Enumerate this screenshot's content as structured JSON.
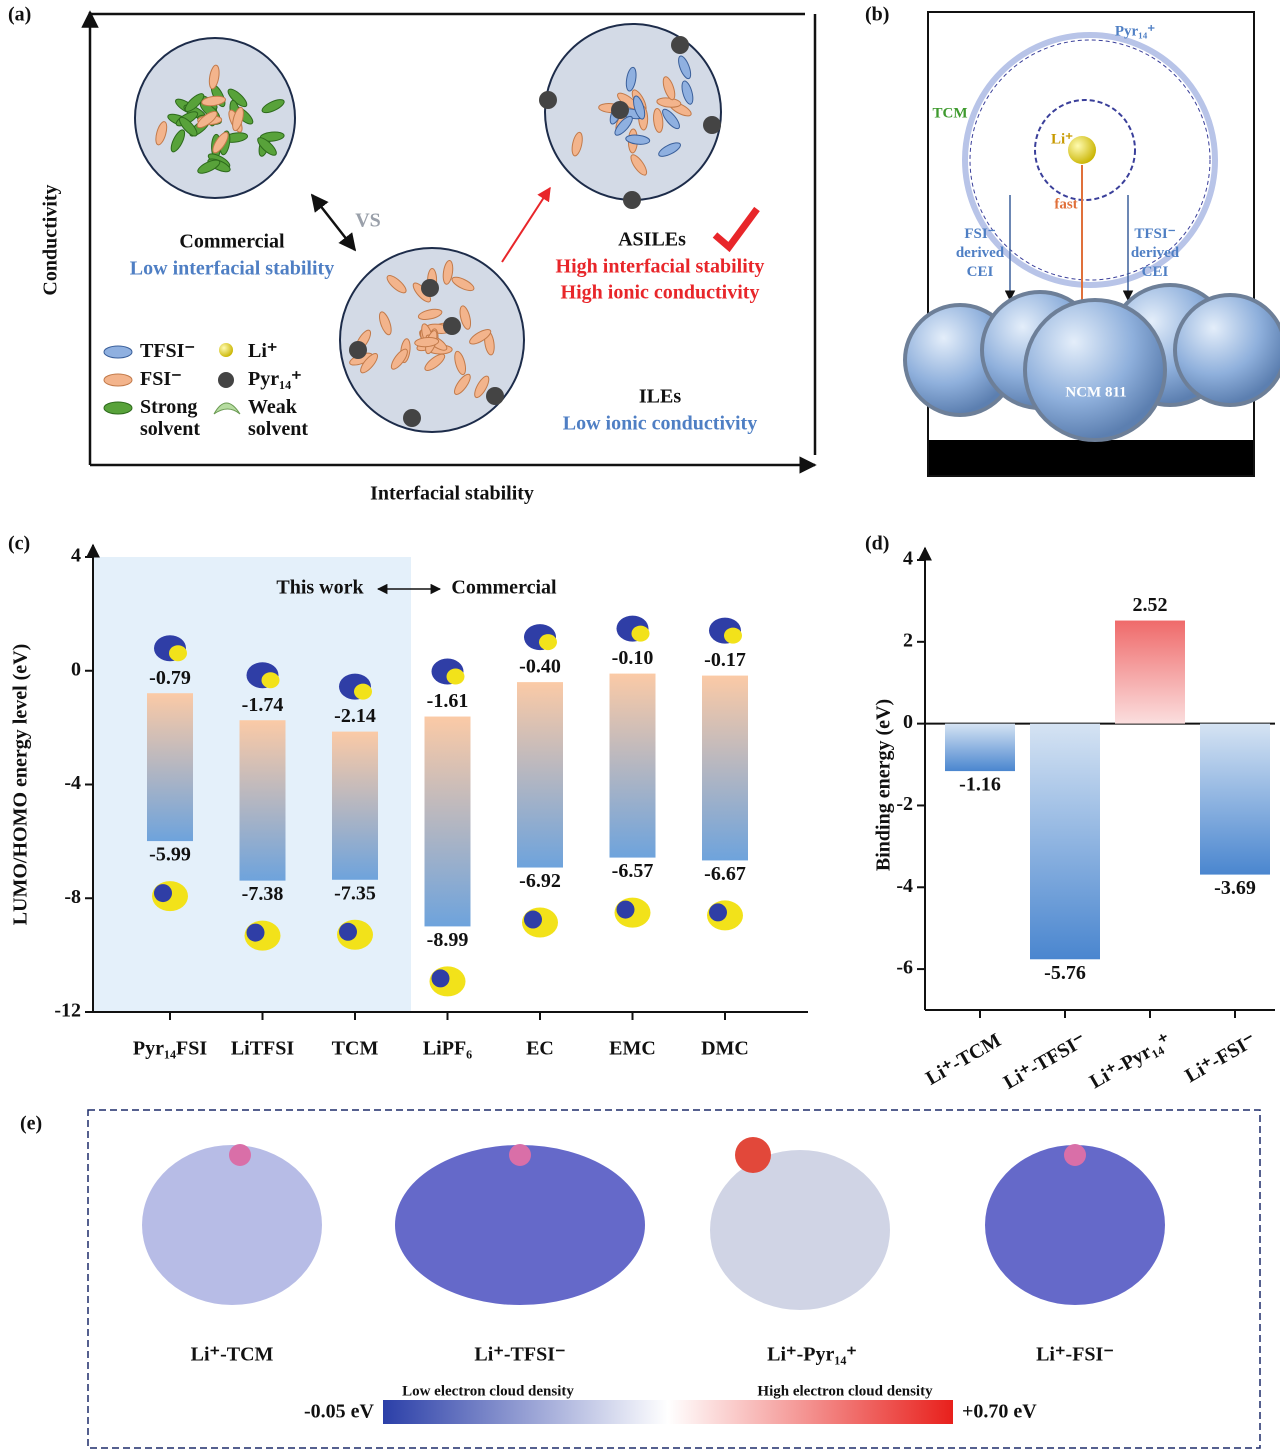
{
  "labels": [
    "(a)",
    "(b)",
    "(c)",
    "(d)",
    "(e)"
  ],
  "panel_a": {
    "y_label": "Conductivity",
    "x_label": "Interfacial stability",
    "vs": "VS",
    "commercial": {
      "name": "Commercial",
      "note": "Low interfacial stability"
    },
    "asiles": {
      "name": "ASILEs",
      "notes": [
        "High interfacial stability",
        "High ionic conductivity"
      ]
    },
    "iles": {
      "name": "ILEs",
      "note": "Low ionic conductivity"
    },
    "legend": [
      [
        "TFSI⁻"
      ],
      [
        "FSI⁻"
      ],
      [
        "Strong",
        "solvent"
      ],
      [
        "Li⁺"
      ],
      [
        "Pyr₁₄⁺"
      ],
      [
        "Weak",
        "solvent"
      ]
    ]
  },
  "panel_b": {
    "cation": "Pyr₁₄⁺",
    "solvent": "TCM",
    "li": "Li⁺",
    "fast": "fast",
    "fsi_cei": [
      "FSI⁻",
      "derived",
      "CEI"
    ],
    "tfsi_cei": [
      "TFSI⁻",
      "derived",
      "CEI"
    ],
    "cathode": "NCM 811"
  },
  "chart_data": [
    {
      "type": "range",
      "y_label": "LUMO/HOMO energy level (eV)",
      "annotations": [
        "This work",
        "Commercial"
      ],
      "categories": [
        "Pyr₁₄FSI",
        "LiTFSI",
        "TCM",
        "LiPF₆",
        "EC",
        "EMC",
        "DMC"
      ],
      "series": [
        {
          "values": [
            -0.79,
            -1.74,
            -2.14,
            -1.61,
            -0.4,
            -0.1,
            -0.17
          ],
          "value_labels": [
            "-0.79",
            "-1.74",
            "-2.14",
            "-1.61",
            "-0.40",
            "-0.10",
            "-0.17"
          ],
          "color": "#fbcaa6"
        },
        {
          "values": [
            -5.99,
            -7.38,
            -7.35,
            -8.99,
            -6.92,
            -6.57,
            -6.67
          ],
          "value_labels": [
            "-5.99",
            "-7.38",
            "-7.35",
            "-8.99",
            "-6.92",
            "-6.57",
            "-6.67"
          ],
          "color": "#6ea3dc"
        }
      ],
      "ylim": [
        -12,
        4
      ],
      "yticks": [
        -12,
        -8,
        -4,
        0,
        4
      ],
      "shade_color": "#e4f0fa"
    },
    {
      "type": "bar",
      "y_label": "Binding energy (eV)",
      "categories": [
        "Li⁺-TCM",
        "Li⁺-TFSI⁻",
        "Li⁺-Pyr₁₄⁺",
        "Li⁺-FSI⁻"
      ],
      "values": [
        -1.16,
        -5.76,
        2.52,
        -3.69
      ],
      "color_negative": "#4a86cf",
      "color_positive": "#ef6a6a",
      "ylim": [
        -7,
        4
      ],
      "yticks": [
        -6,
        -4,
        -2,
        0,
        2,
        4
      ]
    }
  ],
  "panel_e": {
    "complexes": [
      "Li⁺-TCM",
      "Li⁺-TFSI⁻",
      "Li⁺-Pyr₁₄⁺",
      "Li⁺-FSI⁻"
    ],
    "low_label": "Low electron cloud density",
    "high_label": "High electron cloud density",
    "min_label": "-0.05 eV",
    "max_label": "+0.70 eV"
  }
}
